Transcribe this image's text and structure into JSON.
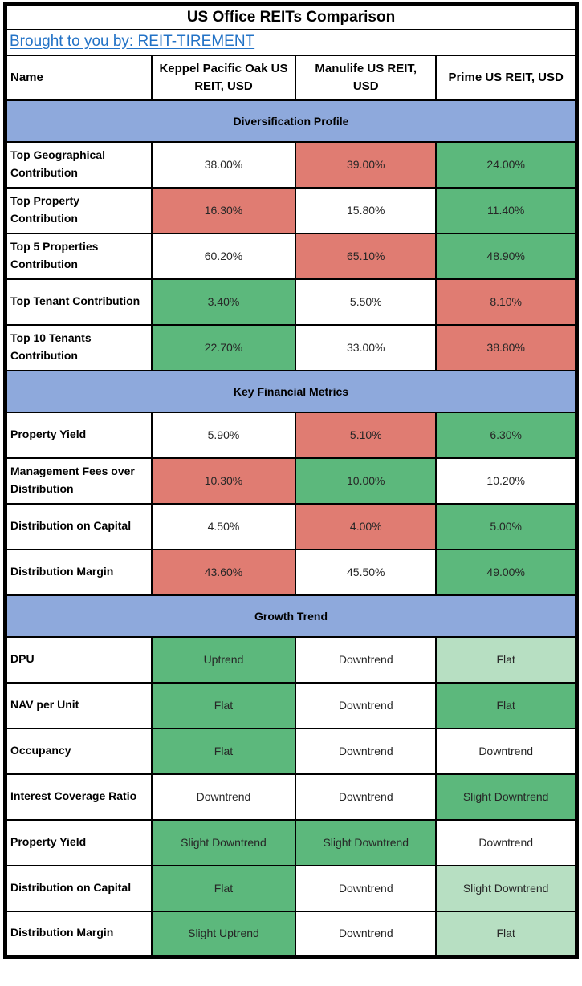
{
  "header": {
    "title": "US Office REITs Comparison",
    "attribution": "Brought to you by: REIT-TIREMENT"
  },
  "colors": {
    "section_header_bg": "#8EA9DC",
    "good": "#5CB87C",
    "good_light": "#B7DFC2",
    "bad": "#E07C72",
    "link": "#2272C6",
    "border": "#000000",
    "text": "#262626"
  },
  "chart_data": {
    "type": "table",
    "title": "US Office REITs Comparison",
    "columns": [
      "Name",
      "Keppel Pacific Oak US REIT, USD",
      "Manulife US REIT, USD",
      "Prime US REIT, USD"
    ],
    "sections": [
      {
        "heading": "Diversification Profile",
        "rows": [
          {
            "label": "Top Geographical Contribution",
            "values": [
              "38.00%",
              "39.00%",
              "24.00%"
            ],
            "highlights": [
              "none",
              "bad",
              "good"
            ]
          },
          {
            "label": "Top Property Contribution",
            "values": [
              "16.30%",
              "15.80%",
              "11.40%"
            ],
            "highlights": [
              "bad",
              "none",
              "good"
            ]
          },
          {
            "label": "Top 5 Properties Contribution",
            "values": [
              "60.20%",
              "65.10%",
              "48.90%"
            ],
            "highlights": [
              "none",
              "bad",
              "good"
            ]
          },
          {
            "label": "Top Tenant Contribution",
            "values": [
              "3.40%",
              "5.50%",
              "8.10%"
            ],
            "highlights": [
              "good",
              "none",
              "bad"
            ]
          },
          {
            "label": "Top 10 Tenants Contribution",
            "values": [
              "22.70%",
              "33.00%",
              "38.80%"
            ],
            "highlights": [
              "good",
              "none",
              "bad"
            ]
          }
        ]
      },
      {
        "heading": "Key Financial Metrics",
        "rows": [
          {
            "label": "Property Yield",
            "values": [
              "5.90%",
              "5.10%",
              "6.30%"
            ],
            "highlights": [
              "none",
              "bad",
              "good"
            ]
          },
          {
            "label": "Management Fees over Distribution",
            "values": [
              "10.30%",
              "10.00%",
              "10.20%"
            ],
            "highlights": [
              "bad",
              "good",
              "none"
            ]
          },
          {
            "label": "Distribution on Capital",
            "values": [
              "4.50%",
              "4.00%",
              "5.00%"
            ],
            "highlights": [
              "none",
              "bad",
              "good"
            ]
          },
          {
            "label": "Distribution Margin",
            "values": [
              "43.60%",
              "45.50%",
              "49.00%"
            ],
            "highlights": [
              "bad",
              "none",
              "good"
            ]
          }
        ]
      },
      {
        "heading": "Growth Trend",
        "rows": [
          {
            "label": "DPU",
            "values": [
              "Uptrend",
              "Downtrend",
              "Flat"
            ],
            "highlights": [
              "good",
              "none",
              "good_light"
            ]
          },
          {
            "label": "NAV per Unit",
            "values": [
              "Flat",
              "Downtrend",
              "Flat"
            ],
            "highlights": [
              "good",
              "none",
              "good"
            ]
          },
          {
            "label": "Occupancy",
            "values": [
              "Flat",
              "Downtrend",
              "Downtrend"
            ],
            "highlights": [
              "good",
              "none",
              "none"
            ]
          },
          {
            "label": "Interest Coverage Ratio",
            "values": [
              "Downtrend",
              "Downtrend",
              "Slight Downtrend"
            ],
            "highlights": [
              "none",
              "none",
              "good"
            ]
          },
          {
            "label": "Property Yield",
            "values": [
              "Slight Downtrend",
              "Slight Downtrend",
              "Downtrend"
            ],
            "highlights": [
              "good",
              "good",
              "none"
            ]
          },
          {
            "label": "Distribution on Capital",
            "values": [
              "Flat",
              "Downtrend",
              "Slight Downtrend"
            ],
            "highlights": [
              "good",
              "none",
              "good_light"
            ]
          },
          {
            "label": "Distribution Margin",
            "values": [
              "Slight Uptrend",
              "Downtrend",
              "Flat"
            ],
            "highlights": [
              "good",
              "none",
              "good_light"
            ]
          }
        ]
      }
    ]
  }
}
